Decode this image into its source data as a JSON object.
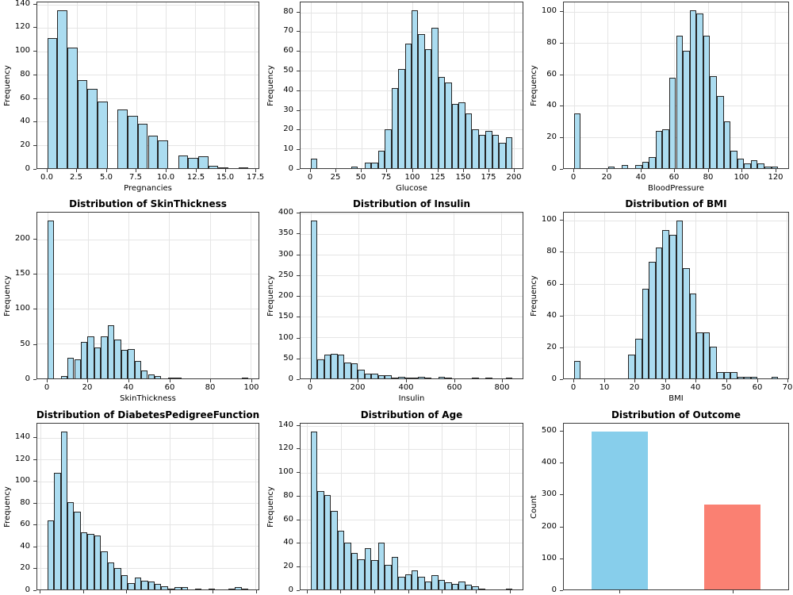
{
  "figure": {
    "background": "#ffffff",
    "hist_fill": "#abdcf0",
    "hist_edge": "#262626",
    "outcome_colors": [
      "#87CEEB",
      "#FA8072"
    ],
    "grid_color": "#e5e5e5",
    "spine_color": "#3a3a3a"
  },
  "chart_data": [
    {
      "id": "pregnancies",
      "type": "histogram",
      "title": "",
      "xlabel": "Pregnancies",
      "ylabel": "Frequency",
      "bin_start": 0,
      "bin_width": 0.85,
      "values": [
        111,
        135,
        103,
        75,
        68,
        57,
        0,
        50,
        45,
        38,
        28,
        24,
        0,
        11,
        9,
        10,
        2,
        1,
        0,
        1
      ],
      "xlim": [
        -0.85,
        17.85
      ],
      "ylim": [
        0,
        141.8
      ],
      "xticks": [
        0,
        2.5,
        5,
        7.5,
        10,
        12.5,
        15,
        17.5
      ],
      "xtick_labels": [
        "0.0",
        "2.5",
        "5.0",
        "7.5",
        "10.0",
        "12.5",
        "15.0",
        "17.5"
      ],
      "yticks": [
        0,
        20,
        40,
        60,
        80,
        100,
        120,
        140
      ],
      "grid": true,
      "show_xtick_labels": true
    },
    {
      "id": "glucose",
      "type": "histogram",
      "title": "",
      "xlabel": "Glucose",
      "ylabel": "Frequency",
      "bin_start": 0,
      "bin_width": 6.633,
      "values": [
        5,
        0,
        0,
        0,
        0,
        0,
        1,
        0,
        3,
        3,
        9,
        20,
        41,
        51,
        64,
        81,
        69,
        61,
        72,
        47,
        44,
        33,
        34,
        28,
        20,
        17,
        19,
        17,
        13,
        16
      ],
      "xlim": [
        -9.95,
        208.95
      ],
      "ylim": [
        0,
        85.1
      ],
      "xticks": [
        0,
        25,
        50,
        75,
        100,
        125,
        150,
        175,
        200
      ],
      "xtick_labels": [
        "0",
        "25",
        "50",
        "75",
        "100",
        "125",
        "150",
        "175",
        "200"
      ],
      "yticks": [
        0,
        10,
        20,
        30,
        40,
        50,
        60,
        70,
        80
      ],
      "grid": true,
      "show_xtick_labels": true
    },
    {
      "id": "bloodpressure",
      "type": "histogram",
      "title": "",
      "xlabel": "BloodPressure",
      "ylabel": "Frequency",
      "bin_start": 0,
      "bin_width": 4.067,
      "values": [
        35,
        0,
        0,
        0,
        0,
        1,
        0,
        2,
        0,
        2,
        4,
        7,
        24,
        25,
        58,
        85,
        75,
        101,
        99,
        85,
        59,
        46,
        30,
        11,
        6,
        3,
        5,
        3,
        1,
        1
      ],
      "xlim": [
        -6.1,
        128.1
      ],
      "ylim": [
        0,
        106.1
      ],
      "xticks": [
        0,
        20,
        40,
        60,
        80,
        100,
        120
      ],
      "xtick_labels": [
        "0",
        "20",
        "40",
        "60",
        "80",
        "100",
        "120"
      ],
      "yticks": [
        0,
        20,
        40,
        60,
        80,
        100
      ],
      "grid": true,
      "show_xtick_labels": true
    },
    {
      "id": "skinthickness",
      "type": "histogram",
      "title": "Distribution of SkinThickness",
      "xlabel": "SkinThickness",
      "ylabel": "Frequency",
      "bin_start": 0,
      "bin_width": 3.3,
      "values": [
        227,
        0,
        4,
        30,
        27,
        52,
        61,
        44,
        60,
        77,
        56,
        41,
        42,
        25,
        11,
        6,
        3,
        0,
        1,
        1,
        0,
        0,
        0,
        0,
        0,
        0,
        0,
        0,
        0,
        1
      ],
      "xlim": [
        -4.95,
        103.95
      ],
      "ylim": [
        0,
        238.4
      ],
      "xticks": [
        0,
        20,
        40,
        60,
        80,
        100
      ],
      "xtick_labels": [
        "0",
        "20",
        "40",
        "60",
        "80",
        "100"
      ],
      "yticks": [
        0,
        50,
        100,
        150,
        200
      ],
      "grid": true,
      "show_xtick_labels": true
    },
    {
      "id": "insulin",
      "type": "histogram",
      "title": "Distribution of Insulin",
      "xlabel": "Insulin",
      "ylabel": "Frequency",
      "bin_start": 0,
      "bin_width": 28.2,
      "values": [
        383,
        46,
        58,
        60,
        58,
        38,
        37,
        21,
        12,
        12,
        8,
        8,
        2,
        3,
        2,
        1,
        4,
        1,
        0,
        3,
        1,
        0,
        0,
        0,
        1,
        0,
        1,
        0,
        0,
        1
      ],
      "xlim": [
        -42.3,
        888.3
      ],
      "ylim": [
        0,
        402.2
      ],
      "xticks": [
        0,
        200,
        400,
        600,
        800
      ],
      "xtick_labels": [
        "0",
        "200",
        "400",
        "600",
        "800"
      ],
      "yticks": [
        0,
        50,
        100,
        150,
        200,
        250,
        300,
        350,
        400
      ],
      "grid": true,
      "show_xtick_labels": true
    },
    {
      "id": "bmi",
      "type": "histogram",
      "title": "Distribution of BMI",
      "xlabel": "BMI",
      "ylabel": "Frequency",
      "bin_start": 0,
      "bin_width": 2.237,
      "values": [
        11,
        0,
        0,
        0,
        0,
        0,
        0,
        0,
        15,
        25,
        57,
        74,
        83,
        94,
        91,
        100,
        70,
        54,
        29,
        29,
        20,
        4,
        4,
        4,
        1,
        1,
        1,
        0,
        0,
        1
      ],
      "xlim": [
        -3.36,
        70.46
      ],
      "ylim": [
        0,
        105.1
      ],
      "xticks": [
        0,
        10,
        20,
        30,
        40,
        50,
        60,
        70
      ],
      "xtick_labels": [
        "0",
        "10",
        "20",
        "30",
        "40",
        "50",
        "60",
        "70"
      ],
      "yticks": [
        0,
        20,
        40,
        60,
        80,
        100
      ],
      "grid": true,
      "show_xtick_labels": true
    },
    {
      "id": "diabetespedigreefunction",
      "type": "histogram",
      "title": "Distribution of DiabetesPedigreeFunction",
      "xlabel": "",
      "ylabel": "Frequency",
      "bin_start": 0.078,
      "bin_width": 0.07807,
      "values": [
        64,
        108,
        146,
        81,
        72,
        53,
        51,
        50,
        35,
        25,
        20,
        13,
        6,
        11,
        8,
        7,
        5,
        3,
        1,
        2,
        2,
        0,
        1,
        0,
        1,
        0,
        0,
        1,
        2,
        1
      ],
      "xlim": [
        -0.039,
        2.537
      ],
      "ylim": [
        0,
        153.3
      ],
      "xticks": [
        0,
        0.5,
        1,
        1.5,
        2,
        2.5
      ],
      "xtick_labels": [],
      "yticks": [
        0,
        20,
        40,
        60,
        80,
        100,
        120,
        140
      ],
      "grid": true,
      "show_xtick_labels": false
    },
    {
      "id": "age",
      "type": "histogram",
      "title": "Distribution of Age",
      "xlabel": "",
      "ylabel": "Frequency",
      "bin_start": 21,
      "bin_width": 2,
      "values": [
        135,
        84,
        81,
        67,
        50,
        40,
        31,
        26,
        35,
        25,
        40,
        21,
        28,
        11,
        13,
        16,
        11,
        7,
        12,
        8,
        6,
        5,
        7,
        4,
        3,
        1,
        0,
        0,
        0,
        1
      ],
      "xlim": [
        18,
        84
      ],
      "ylim": [
        0,
        141.8
      ],
      "xticks": [
        20,
        30,
        40,
        50,
        60,
        70,
        80
      ],
      "xtick_labels": [],
      "yticks": [
        0,
        20,
        40,
        60,
        80,
        100,
        120,
        140
      ],
      "grid": true,
      "show_xtick_labels": false
    },
    {
      "id": "outcome",
      "type": "bar",
      "title": "Distribution of Outcome",
      "xlabel": "",
      "ylabel": "Count",
      "bar_centers": [
        0,
        1
      ],
      "bar_width": 0.5,
      "values": [
        500,
        268
      ],
      "bar_colors": [
        "#87CEEB",
        "#FA8072"
      ],
      "xlim": [
        -0.5,
        1.5
      ],
      "ylim": [
        0,
        525
      ],
      "xticks": [
        0,
        1
      ],
      "xtick_labels": [],
      "yticks": [
        0,
        100,
        200,
        300,
        400,
        500
      ],
      "grid": false,
      "show_xtick_labels": false
    }
  ]
}
